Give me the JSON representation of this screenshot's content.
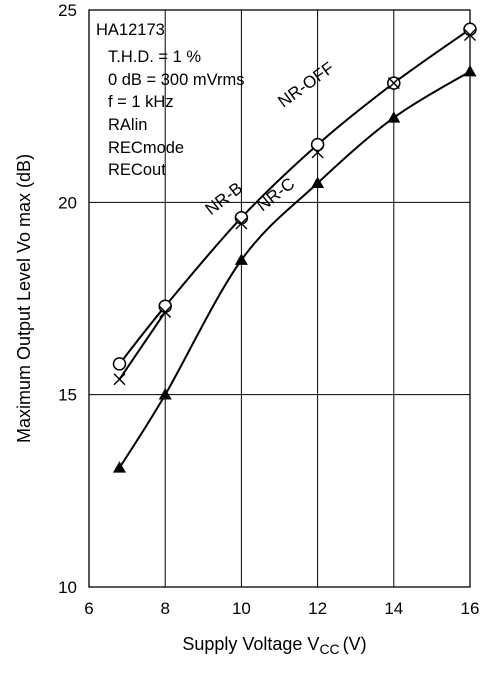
{
  "chart_data": {
    "type": "line",
    "title": "",
    "xlabel": "Supply Voltage V",
    "xlabel_sub": "CC",
    "xlabel_unit": "(V)",
    "ylabel": "Maximum Output Level Vo max (dB)",
    "xlim": [
      6,
      16
    ],
    "ylim": [
      10,
      25
    ],
    "x_ticks": [
      6,
      8,
      10,
      12,
      14,
      16
    ],
    "y_ticks": [
      10,
      15,
      20,
      25
    ],
    "grid": true,
    "annotations": [
      "HA12173",
      "T.H.D. = 1 %",
      "0 dB = 300 mVrms",
      "f = 1 kHz",
      "RAlin",
      "RECmode",
      "RECout"
    ],
    "series": [
      {
        "name": "NR-OFF",
        "marker": "open-circle",
        "x": [
          6.8,
          8,
          10,
          12,
          14,
          16
        ],
        "y": [
          15.8,
          17.3,
          19.6,
          21.5,
          23.1,
          24.5
        ]
      },
      {
        "name": "NR-B",
        "marker": "cross",
        "x": [
          6.8,
          8,
          10,
          12,
          14,
          16
        ],
        "y": [
          15.4,
          17.15,
          19.45,
          21.3,
          23.1,
          24.35
        ]
      },
      {
        "name": "NR-C",
        "marker": "filled-triangle",
        "x": [
          6.8,
          8,
          10,
          12,
          14,
          16
        ],
        "y": [
          13.1,
          15.0,
          18.5,
          20.5,
          22.2,
          23.4
        ]
      }
    ]
  }
}
